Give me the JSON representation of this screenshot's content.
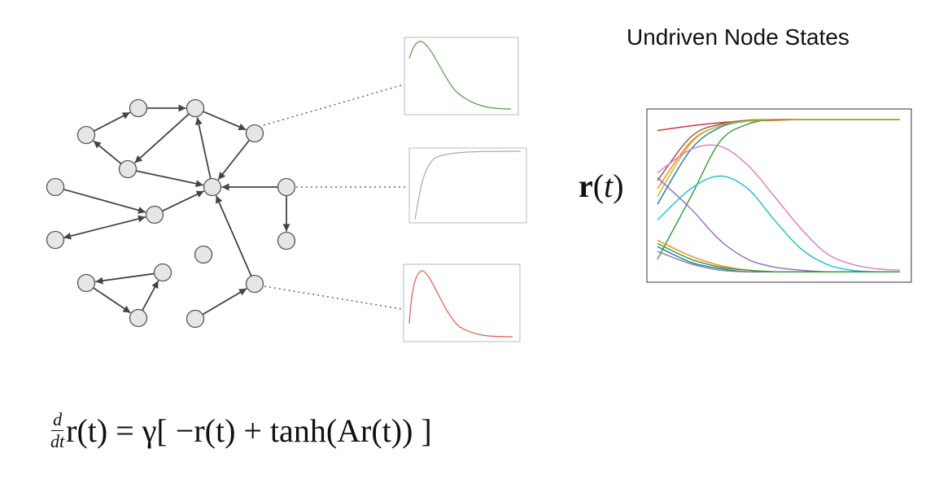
{
  "title": "Undriven Node States",
  "state_label": {
    "vector": "r",
    "open": "(",
    "var": "t",
    "close": ")"
  },
  "equation": {
    "frac_num": "d",
    "frac_den": "dt",
    "rhs": "r(t) = γ[ −r(t) + tanh(Ar(t)) ]"
  },
  "colors": {
    "node_fill": "#e6e6e6",
    "node_stroke": "#555555",
    "edge": "#444444",
    "inset_green": "#5a9a4a",
    "inset_gray": "#aaaaaa",
    "inset_red": "#e05a4a"
  },
  "network": {
    "nodes": [
      "n1",
      "n2",
      "n3",
      "n4",
      "n5",
      "n6",
      "n7",
      "n8",
      "n9",
      "n10",
      "n11",
      "n12",
      "n13",
      "n14",
      "n15",
      "n16",
      "n17"
    ],
    "edges": [
      [
        "n1",
        "n2"
      ],
      [
        "n2",
        "n3"
      ],
      [
        "n3",
        "n4"
      ],
      [
        "n3",
        "n5"
      ],
      [
        "n5",
        "n1"
      ],
      [
        "n5",
        "n7"
      ],
      [
        "n7",
        "n3"
      ],
      [
        "n4",
        "n7"
      ],
      [
        "n8",
        "n7"
      ],
      [
        "n8",
        "n9"
      ],
      [
        "n6",
        "n10"
      ],
      [
        "n11",
        "n10"
      ],
      [
        "n10",
        "n7"
      ],
      [
        "n16",
        "n7"
      ],
      [
        "n17",
        "n16"
      ],
      [
        "n12",
        "n13"
      ],
      [
        "n13",
        "n14"
      ],
      [
        "n14",
        "n12"
      ]
    ]
  },
  "chart_data": {
    "type": "line",
    "title": "Undriven Node States",
    "ylabel": "r(t)",
    "xlabel": "",
    "grid": false,
    "legend": "none",
    "series": [
      {
        "color": "#d62728",
        "values": [
          0.92,
          0.95,
          0.97,
          0.98,
          0.985,
          0.99,
          0.99,
          0.99,
          0.99,
          0.99
        ]
      },
      {
        "color": "#ff7f0e",
        "values": [
          0.55,
          0.85,
          0.95,
          0.98,
          0.99,
          0.99,
          0.99,
          0.99,
          0.99,
          0.99
        ]
      },
      {
        "color": "#2ca02c",
        "values": [
          0.1,
          0.5,
          0.85,
          0.96,
          0.99,
          0.99,
          0.99,
          0.99,
          0.99,
          0.99
        ]
      },
      {
        "color": "#1f77b4",
        "values": [
          0.45,
          0.8,
          0.94,
          0.98,
          0.99,
          0.99,
          0.99,
          0.99,
          0.99,
          0.99
        ]
      },
      {
        "color": "#8c564b",
        "values": [
          0.6,
          0.88,
          0.96,
          0.985,
          0.99,
          0.99,
          0.99,
          0.99,
          0.99,
          0.99
        ]
      },
      {
        "color": "#bcbd22",
        "values": [
          0.5,
          0.84,
          0.95,
          0.98,
          0.99,
          0.99,
          0.99,
          0.99,
          0.99,
          0.99
        ]
      },
      {
        "color": "#e377c2",
        "values": [
          0.65,
          0.8,
          0.82,
          0.7,
          0.5,
          0.3,
          0.14,
          0.07,
          0.04,
          0.03
        ]
      },
      {
        "color": "#17becf",
        "values": [
          0.35,
          0.55,
          0.63,
          0.55,
          0.35,
          0.17,
          0.07,
          0.03,
          0.02,
          0.02
        ]
      },
      {
        "color": "#9467bd",
        "values": [
          0.62,
          0.42,
          0.22,
          0.1,
          0.05,
          0.03,
          0.02,
          0.02,
          0.02,
          0.02
        ]
      },
      {
        "color": "#ff7f0e",
        "values": [
          0.22,
          0.12,
          0.06,
          0.03,
          0.02,
          0.02,
          0.02,
          0.02,
          0.02,
          0.02
        ]
      },
      {
        "color": "#1f77b4",
        "values": [
          0.18,
          0.08,
          0.04,
          0.02,
          0.02,
          0.02,
          0.02,
          0.02,
          0.02,
          0.02
        ]
      },
      {
        "color": "#7f7f7f",
        "values": [
          0.15,
          0.07,
          0.03,
          0.02,
          0.02,
          0.02,
          0.02,
          0.02,
          0.02,
          0.02
        ]
      },
      {
        "color": "#2ca02c",
        "values": [
          0.2,
          0.1,
          0.05,
          0.03,
          0.02,
          0.02,
          0.02,
          0.02,
          0.02,
          0.02
        ]
      }
    ]
  }
}
